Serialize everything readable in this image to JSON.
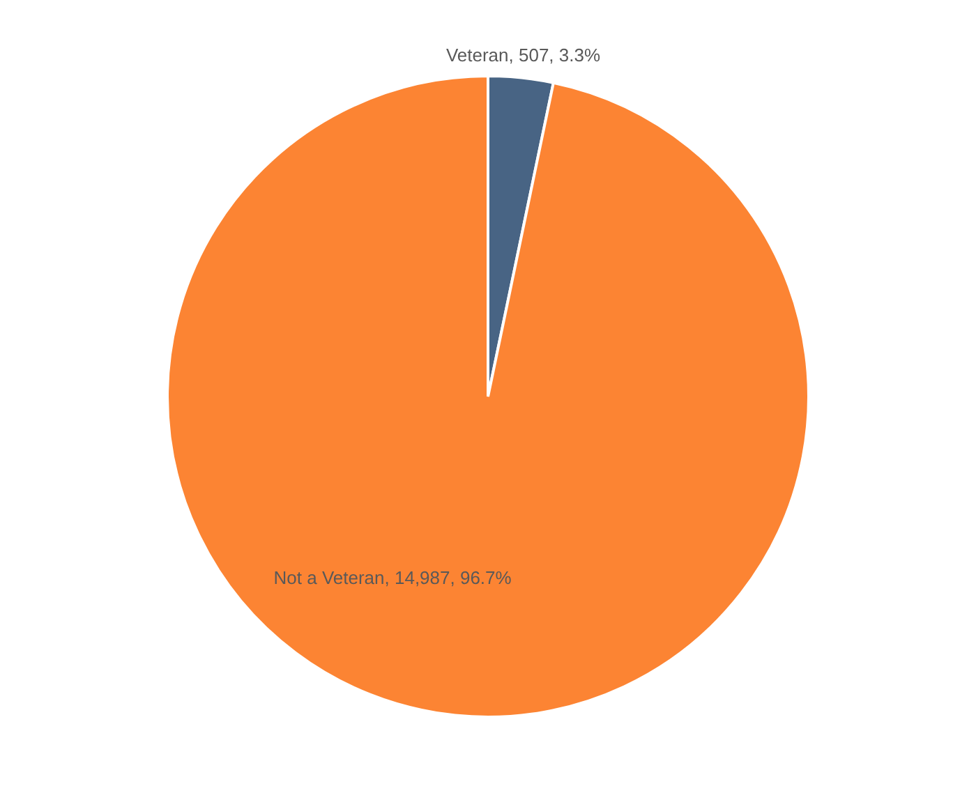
{
  "chart_data": {
    "type": "pie",
    "categories": [
      "Veteran",
      "Not a Veteran"
    ],
    "values": [
      507,
      14987
    ],
    "colors": [
      "#486484",
      "#fc8433"
    ],
    "value_labels": [
      "507, 3.3%",
      "14,987, 96.7%"
    ]
  }
}
